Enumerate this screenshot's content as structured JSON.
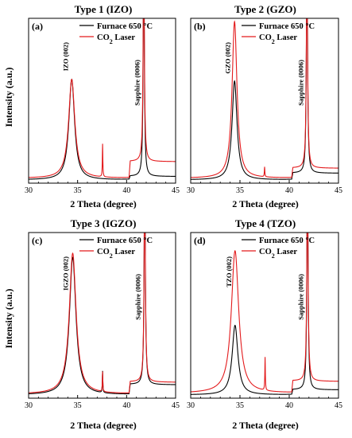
{
  "figure": {
    "xlabel_text": "2 Theta (degree)",
    "ylabel_text": "Intensity (a.u.)",
    "legend_labels": [
      "Furnace 650 °C",
      "CO2 Laser"
    ],
    "legend_subscript_note": "2",
    "colors": {
      "furnace": "#000000",
      "laser": "#e31a1c"
    }
  },
  "chart_data": [
    {
      "type": "line",
      "panel_label": "(a)",
      "title": "Type 1 (IZO)",
      "xlabel": "2 Theta (degree)",
      "ylabel": "Intensity (a.u.)",
      "xlim": [
        30,
        45
      ],
      "xticks": [
        30,
        35,
        40,
        45
      ],
      "annotations": [
        {
          "text": "IZO (002)",
          "x": 34.4
        },
        {
          "text": "Sapphire (0006)",
          "x": 41.7
        }
      ],
      "series": [
        {
          "name": "Furnace 650 °C",
          "color": "#000000",
          "baseline": 0.02,
          "peaks": [
            {
              "center": 34.4,
              "height": 0.61,
              "width": 0.35
            },
            {
              "center": 41.75,
              "height": 1.4,
              "width": 0.07
            }
          ],
          "plateau": {
            "start": 40.25,
            "end": 45,
            "level": 0.02
          }
        },
        {
          "name": "CO2 Laser",
          "color": "#e31a1c",
          "baseline": 0.03,
          "peaks": [
            {
              "center": 34.4,
              "height": 0.6,
              "width": 0.38
            },
            {
              "center": 37.55,
              "height": 0.2,
              "width": 0.03
            },
            {
              "center": 41.75,
              "height": 1.4,
              "width": 0.07
            }
          ],
          "plateau": {
            "start": 40.25,
            "end": 45,
            "level": 0.1
          }
        }
      ]
    },
    {
      "type": "line",
      "panel_label": "(b)",
      "title": "Type 2 (GZO)",
      "xlabel": "2 Theta (degree)",
      "ylabel": "",
      "xlim": [
        30,
        45
      ],
      "xticks": [
        30,
        35,
        40,
        45
      ],
      "annotations": [
        {
          "text": "GZO (002)",
          "x": 34.4
        },
        {
          "text": "Sapphire (0006)",
          "x": 41.8
        }
      ],
      "series": [
        {
          "name": "Furnace 650 °C",
          "color": "#000000",
          "baseline": 0.02,
          "peaks": [
            {
              "center": 34.45,
              "height": 0.6,
              "width": 0.3
            },
            {
              "center": 41.8,
              "height": 1.4,
              "width": 0.07
            }
          ],
          "plateau": {
            "start": 40.25,
            "end": 45,
            "level": 0.04
          }
        },
        {
          "name": "CO2 Laser",
          "color": "#e31a1c",
          "baseline": 0.03,
          "peaks": [
            {
              "center": 34.45,
              "height": 0.95,
              "width": 0.3
            },
            {
              "center": 37.5,
              "height": 0.06,
              "width": 0.03
            },
            {
              "center": 41.8,
              "height": 1.4,
              "width": 0.07
            }
          ],
          "plateau": {
            "start": 40.25,
            "end": 45,
            "level": 0.06
          }
        }
      ]
    },
    {
      "type": "line",
      "panel_label": "(c)",
      "title": "Type 3 (IGZO)",
      "xlabel": "2 Theta (degree)",
      "ylabel": "Intensity (a.u.)",
      "xlim": [
        30,
        45
      ],
      "xticks": [
        30,
        35,
        40,
        45
      ],
      "annotations": [
        {
          "text": "IGZO (002)",
          "x": 34.4
        },
        {
          "text": "Sapphire (0006)",
          "x": 41.8
        }
      ],
      "series": [
        {
          "name": "Furnace 650 °C",
          "color": "#000000",
          "baseline": 0.02,
          "peaks": [
            {
              "center": 34.5,
              "height": 0.83,
              "width": 0.4
            },
            {
              "center": 37.55,
              "height": 0.13,
              "width": 0.03
            },
            {
              "center": 41.85,
              "height": 1.4,
              "width": 0.07
            }
          ],
          "plateau": {
            "start": 40.25,
            "end": 45,
            "level": 0.06
          }
        },
        {
          "name": "CO2 Laser",
          "color": "#e31a1c",
          "baseline": 0.025,
          "peaks": [
            {
              "center": 34.5,
              "height": 0.85,
              "width": 0.42
            },
            {
              "center": 37.55,
              "height": 0.12,
              "width": 0.03
            },
            {
              "center": 41.85,
              "height": 1.4,
              "width": 0.07
            }
          ],
          "plateau": {
            "start": 40.25,
            "end": 45,
            "level": 0.07
          }
        }
      ]
    },
    {
      "type": "line",
      "panel_label": "(d)",
      "title": "Type 4 (TZO)",
      "xlabel": "2 Theta (degree)",
      "ylabel": "",
      "xlim": [
        30,
        45
      ],
      "xticks": [
        30,
        35,
        40,
        45
      ],
      "annotations": [
        {
          "text": "TZO (002)",
          "x": 34.5
        },
        {
          "text": "Sapphire (0006)",
          "x": 41.8
        }
      ],
      "series": [
        {
          "name": "Furnace 650 °C",
          "color": "#000000",
          "baseline": 0.02,
          "peaks": [
            {
              "center": 34.5,
              "height": 0.42,
              "width": 0.35
            },
            {
              "center": 41.85,
              "height": 1.4,
              "width": 0.07
            }
          ],
          "plateau": {
            "start": 40.25,
            "end": 45,
            "level": 0.03
          }
        },
        {
          "name": "CO2 Laser",
          "color": "#e31a1c",
          "baseline": 0.03,
          "peaks": [
            {
              "center": 34.5,
              "height": 0.86,
              "width": 0.45
            },
            {
              "center": 37.55,
              "height": 0.2,
              "width": 0.03
            },
            {
              "center": 41.85,
              "height": 1.4,
              "width": 0.07
            }
          ],
          "plateau": {
            "start": 40.25,
            "end": 45,
            "level": 0.07
          }
        }
      ]
    }
  ]
}
